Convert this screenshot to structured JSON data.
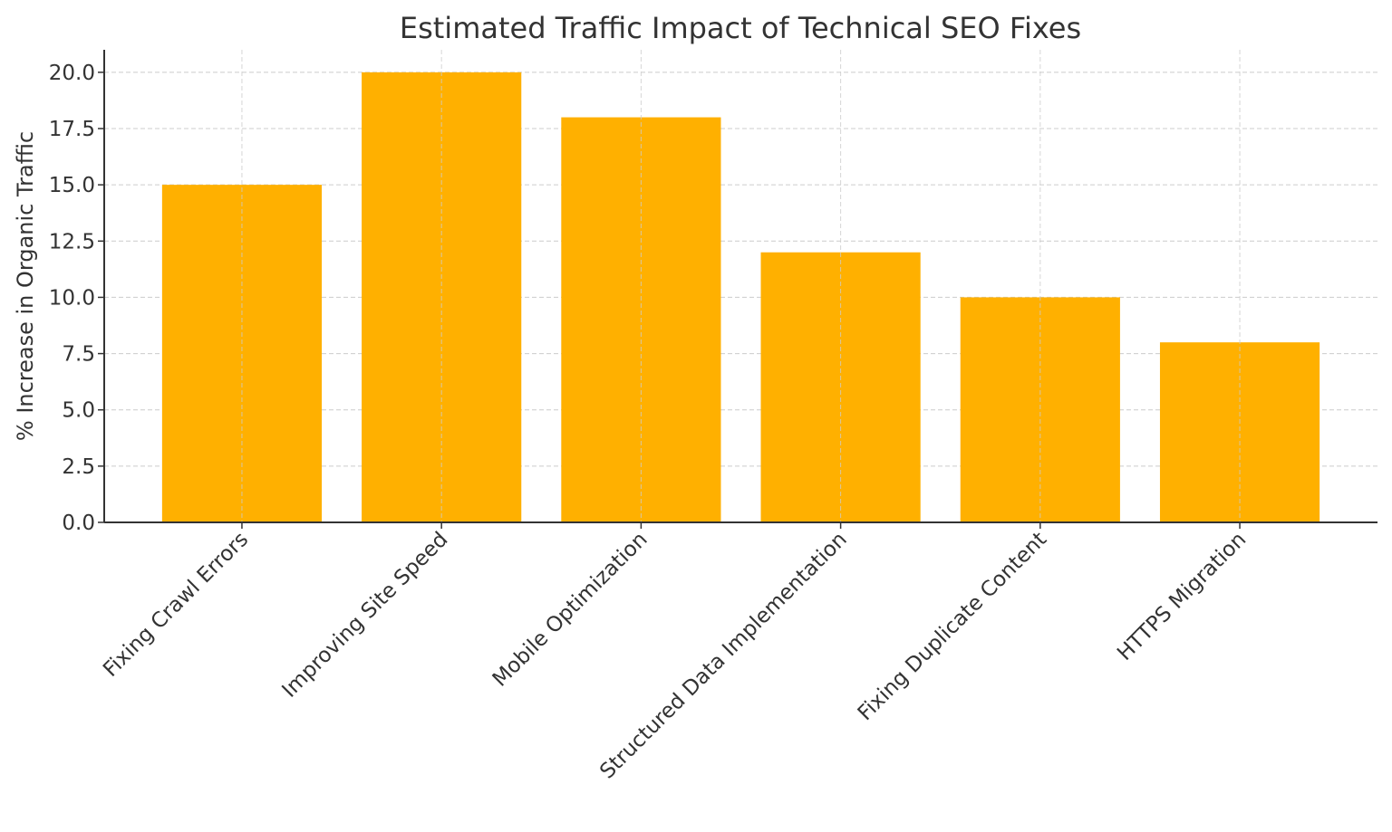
{
  "chart_data": {
    "type": "bar",
    "title": "Estimated Traffic Impact of Technical SEO Fixes",
    "xlabel": "",
    "ylabel": "% Increase in Organic Traffic",
    "categories": [
      "Fixing Crawl Errors",
      "Improving Site Speed",
      "Mobile Optimization",
      "Structured Data Implementation",
      "Fixing Duplicate Content",
      "HTTPS Migration"
    ],
    "values": [
      15,
      20,
      18,
      12,
      10,
      8
    ],
    "ylim": [
      0,
      21
    ],
    "yticks": [
      "0.0",
      "2.5",
      "5.0",
      "7.5",
      "10.0",
      "12.5",
      "15.0",
      "17.5",
      "20.0"
    ],
    "grid": true,
    "bar_color": "#FFB000"
  }
}
